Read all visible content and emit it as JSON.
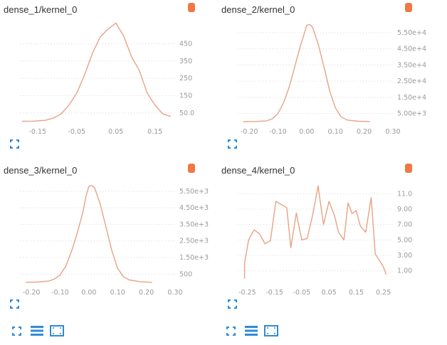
{
  "panels": [
    {
      "title": "dense_1/kernel_0",
      "badge_icon": "tag-icon",
      "expand_icon": "fullscreen-icon"
    },
    {
      "title": "dense_2/kernel_0",
      "badge_icon": "tag-icon",
      "expand_icon": "fullscreen-icon"
    },
    {
      "title": "dense_3/kernel_0",
      "badge_icon": "tag-icon",
      "expand_icon": "fullscreen-icon"
    },
    {
      "title": "dense_4/kernel_0",
      "badge_icon": "tag-icon",
      "expand_icon": "fullscreen-icon"
    }
  ],
  "toolbar": {
    "groups": [
      {
        "icons": [
          "fullscreen-icon",
          "list-icon",
          "fit-to-data-icon"
        ]
      },
      {
        "icons": [
          "fullscreen-icon",
          "list-icon",
          "fit-to-data-icon"
        ]
      }
    ]
  },
  "colors": {
    "line": "#e9a284",
    "badge": "#f07844",
    "icon": "#2f8bd6",
    "tick": "#9a9a9a",
    "grid": "#d8d8d8"
  },
  "chart_data": [
    {
      "type": "line",
      "title": "dense_1/kernel_0",
      "xticks": [
        -0.15,
        -0.05,
        0.05,
        0.15
      ],
      "xtick_labels": [
        "-0.15",
        "-0.05",
        "0.05",
        "0.15"
      ],
      "xlim": [
        -0.195,
        0.205
      ],
      "yticks": [
        50,
        150,
        250,
        350,
        450
      ],
      "ytick_labels": [
        "50.0",
        "150",
        "250",
        "350",
        "450"
      ],
      "ylim": [
        0,
        580
      ],
      "grid": true,
      "x": [
        -0.19,
        -0.16,
        -0.13,
        -0.11,
        -0.09,
        -0.07,
        -0.05,
        -0.03,
        -0.01,
        0.01,
        0.03,
        0.05,
        0.07,
        0.09,
        0.11,
        0.13,
        0.15,
        0.17,
        0.19
      ],
      "y": [
        2,
        3,
        8,
        20,
        45,
        95,
        165,
        270,
        395,
        490,
        535,
        570,
        495,
        375,
        295,
        165,
        95,
        45,
        30
      ]
    },
    {
      "type": "line",
      "title": "dense_2/kernel_0",
      "xticks": [
        -0.2,
        -0.1,
        0.0,
        0.1,
        0.2,
        0.3
      ],
      "xtick_labels": [
        "-0.20",
        "-0.10",
        "0.00",
        "0.10",
        "0.20",
        "0.30"
      ],
      "xlim": [
        -0.24,
        0.305
      ],
      "yticks": [
        5000,
        15000,
        25000,
        35000,
        45000,
        55000
      ],
      "ytick_labels": [
        "5.00e+3",
        "1.50e+4",
        "2.50e+4",
        "3.50e+4",
        "4.50e+4",
        "5.50e+4"
      ],
      "ylim": [
        0,
        62000
      ],
      "grid": true,
      "x": [
        -0.22,
        -0.18,
        -0.14,
        -0.12,
        -0.1,
        -0.08,
        -0.06,
        -0.04,
        -0.02,
        -0.01,
        0.0,
        0.01,
        0.02,
        0.04,
        0.06,
        0.08,
        0.1,
        0.12,
        0.14,
        0.18,
        0.22
      ],
      "y": [
        20,
        100,
        500,
        1700,
        5000,
        11800,
        22000,
        35000,
        48000,
        53500,
        59500,
        60000,
        58500,
        48000,
        34000,
        19000,
        8500,
        3000,
        1000,
        200,
        30
      ]
    },
    {
      "type": "line",
      "title": "dense_3/kernel_0",
      "xticks": [
        -0.2,
        -0.1,
        0.0,
        0.1,
        0.2,
        0.3
      ],
      "xtick_labels": [
        "-0.20",
        "-0.10",
        "0.00",
        "0.10",
        "0.20",
        "0.30"
      ],
      "xlim": [
        -0.24,
        0.305
      ],
      "yticks": [
        500,
        1500,
        2500,
        3500,
        4500,
        5500
      ],
      "ytick_labels": [
        "500",
        "1.50e+3",
        "2.50e+3",
        "3.50e+3",
        "4.50e+3",
        "5.50e+3"
      ],
      "ylim": [
        0,
        6050
      ],
      "grid": true,
      "x": [
        -0.22,
        -0.18,
        -0.14,
        -0.12,
        -0.1,
        -0.08,
        -0.06,
        -0.04,
        -0.02,
        -0.01,
        0.0,
        0.01,
        0.02,
        0.04,
        0.06,
        0.08,
        0.1,
        0.12,
        0.14,
        0.18,
        0.22
      ],
      "y": [
        5,
        20,
        80,
        200,
        450,
        1000,
        1900,
        3000,
        4300,
        5200,
        5800,
        5850,
        5700,
        4700,
        3300,
        1900,
        850,
        350,
        150,
        40,
        5
      ]
    },
    {
      "type": "line",
      "title": "dense_4/kernel_0",
      "xticks": [
        -0.25,
        -0.15,
        -0.05,
        0.05,
        0.15,
        0.25
      ],
      "xtick_labels": [
        "-0.25",
        "-0.15",
        "-0.05",
        "0.05",
        "0.15",
        "0.25"
      ],
      "xlim": [
        -0.285,
        0.29
      ],
      "yticks": [
        1,
        3,
        5,
        7,
        9,
        11
      ],
      "ytick_labels": [
        "1.00",
        "3.00",
        "5.00",
        "7.00",
        "9.00",
        "11.0"
      ],
      "ylim": [
        -0.5,
        12.5
      ],
      "grid": true,
      "x": [
        -0.26,
        -0.26,
        -0.245,
        -0.225,
        -0.205,
        -0.185,
        -0.165,
        -0.145,
        -0.12,
        -0.105,
        -0.09,
        -0.07,
        -0.05,
        -0.03,
        -0.01,
        0.01,
        0.03,
        0.05,
        0.07,
        0.085,
        0.105,
        0.12,
        0.135,
        0.15,
        0.165,
        0.185,
        0.205,
        0.22,
        0.25,
        0.26
      ],
      "y": [
        0,
        2,
        5,
        6.3,
        5.8,
        4.5,
        4.9,
        10,
        9.5,
        9.2,
        4,
        8.5,
        5,
        5.2,
        8.2,
        12,
        7,
        10,
        8.2,
        6,
        5,
        9.8,
        8.4,
        8.8,
        6.8,
        6,
        10.5,
        3.2,
        1.5,
        0.5
      ]
    }
  ]
}
